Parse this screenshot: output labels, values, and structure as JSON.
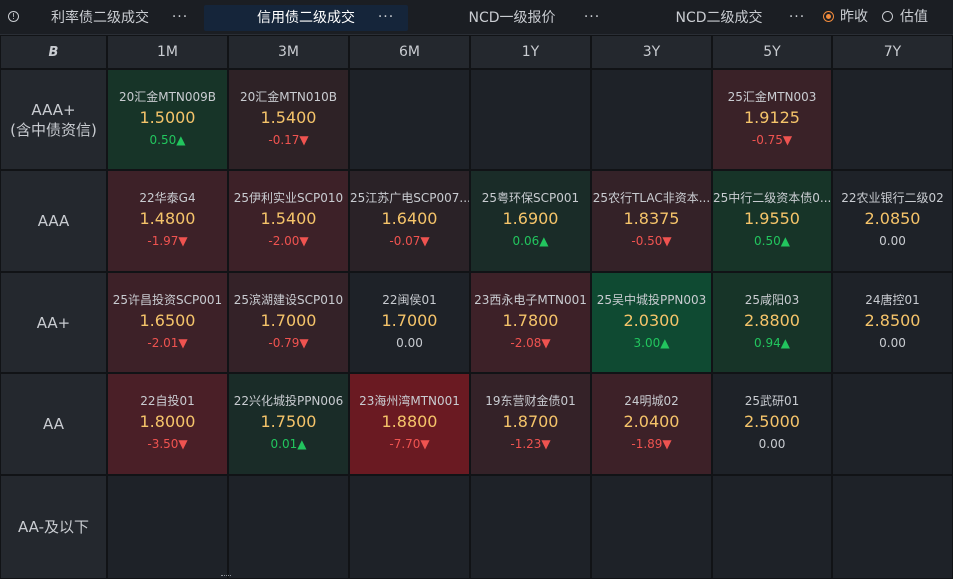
{
  "tabs": [
    {
      "label": "利率债二级成交",
      "active": false
    },
    {
      "label": "信用债二级成交",
      "active": true
    },
    {
      "label": "NCD一级报价",
      "active": false
    },
    {
      "label": "NCD二级成交",
      "active": false
    }
  ],
  "more_label": "···",
  "radios": [
    {
      "label": "昨收",
      "selected": true
    },
    {
      "label": "估值",
      "selected": false
    }
  ],
  "corner_label": "B",
  "columns": [
    "1M",
    "3M",
    "6M",
    "1Y",
    "3Y",
    "5Y",
    "7Y"
  ],
  "rows": [
    {
      "label": "AAA+\n(含中债资信)",
      "cells": [
        {
          "name": "20汇金MTN009B",
          "rate": "1.5000",
          "change": "0.50▲",
          "dir": "up",
          "bg": "#173428"
        },
        {
          "name": "20汇金MTN010B",
          "rate": "1.5400",
          "change": "-0.17▼",
          "dir": "down",
          "bg": "#2e2226"
        },
        null,
        null,
        null,
        {
          "name": "25汇金MTN003",
          "rate": "1.9125",
          "change": "-0.75▼",
          "dir": "down",
          "bg": "#3a2228"
        },
        null
      ]
    },
    {
      "label": "AAA",
      "cells": [
        {
          "name": "22华泰G4",
          "rate": "1.4800",
          "change": "-1.97▼",
          "dir": "down",
          "bg": "#3d2128"
        },
        {
          "name": "25伊利实业SCP010",
          "rate": "1.5400",
          "change": "-2.00▼",
          "dir": "down",
          "bg": "#3d2128"
        },
        {
          "name": "25江苏广电SCP007...",
          "rate": "1.6400",
          "change": "-0.07▼",
          "dir": "down",
          "bg": "#2a2227"
        },
        {
          "name": "25粤环保SCP001",
          "rate": "1.6900",
          "change": "0.06▲",
          "dir": "up",
          "bg": "#1a2c28"
        },
        {
          "name": "25农行TLAC非资本...",
          "rate": "1.8375",
          "change": "-0.50▼",
          "dir": "down",
          "bg": "#342228"
        },
        {
          "name": "25中行二级资本债0...",
          "rate": "1.9550",
          "change": "0.50▲",
          "dir": "up",
          "bg": "#173428"
        },
        {
          "name": "22农业银行二级02",
          "rate": "2.0850",
          "change": "0.00",
          "dir": "flat",
          "bg": "#1e2228"
        }
      ]
    },
    {
      "label": "AA+",
      "cells": [
        {
          "name": "25许昌投资SCP001",
          "rate": "1.6500",
          "change": "-2.01▼",
          "dir": "down",
          "bg": "#3d2128"
        },
        {
          "name": "25滨湖建设SCP010",
          "rate": "1.7000",
          "change": "-0.79▼",
          "dir": "down",
          "bg": "#342228"
        },
        {
          "name": "22闽侯01",
          "rate": "1.7000",
          "change": "0.00",
          "dir": "flat",
          "bg": "#1e2228"
        },
        {
          "name": "23西永电子MTN001",
          "rate": "1.7800",
          "change": "-2.08▼",
          "dir": "down",
          "bg": "#3d2128"
        },
        {
          "name": "25吴中城投PPN003",
          "rate": "2.0300",
          "change": "3.00▲",
          "dir": "up",
          "bg": "#0f4a32"
        },
        {
          "name": "25咸阳03",
          "rate": "2.8800",
          "change": "0.94▲",
          "dir": "up",
          "bg": "#173428"
        },
        {
          "name": "24唐控01",
          "rate": "2.8500",
          "change": "0.00",
          "dir": "flat",
          "bg": "#1e2228"
        }
      ]
    },
    {
      "label": "AA",
      "cells": [
        {
          "name": "22自投01",
          "rate": "1.8000",
          "change": "-3.50▼",
          "dir": "down",
          "bg": "#4a1f27"
        },
        {
          "name": "22兴化城投PPN006",
          "rate": "1.7500",
          "change": "0.01▲",
          "dir": "up",
          "bg": "#1a2c28"
        },
        {
          "name": "23海州湾MTN001",
          "rate": "1.8800",
          "change": "-7.70▼",
          "dir": "down",
          "bg": "#6a1a22"
        },
        {
          "name": "19东营财金债01",
          "rate": "1.8700",
          "change": "-1.23▼",
          "dir": "down",
          "bg": "#342228"
        },
        {
          "name": "24明城02",
          "rate": "2.0400",
          "change": "-1.89▼",
          "dir": "down",
          "bg": "#3d2128"
        },
        {
          "name": "25武研01",
          "rate": "2.5000",
          "change": "0.00",
          "dir": "flat",
          "bg": "#1e2228"
        },
        null
      ]
    },
    {
      "label": "AA-及以下",
      "cells": [
        null,
        null,
        null,
        null,
        null,
        null,
        null
      ]
    }
  ]
}
